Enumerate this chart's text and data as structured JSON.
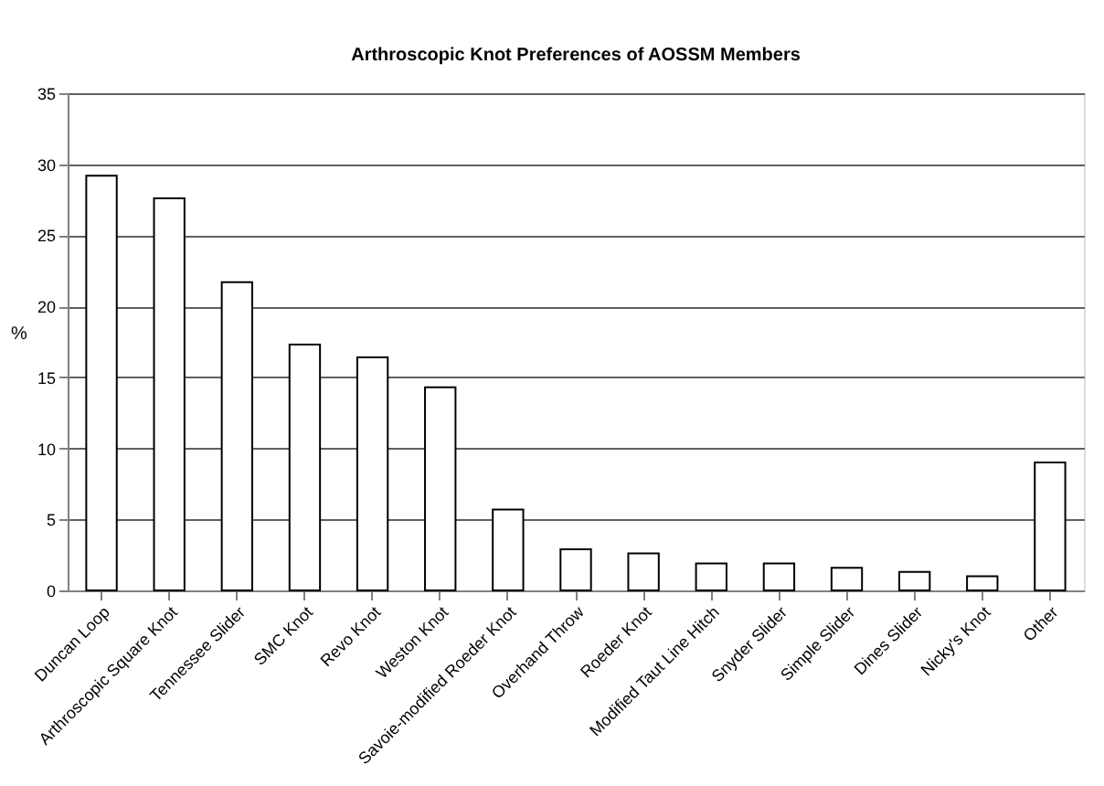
{
  "chart_data": {
    "type": "bar",
    "title": "Arthroscopic Knot Preferences of AOSSM Members",
    "ylabel": "%",
    "categories": [
      "Duncan Loop",
      "Arthroscopic Square Knot",
      "Tennessee Slider",
      "SMC Knot",
      "Revo Knot",
      "Weston Knot",
      "Savoie-modified Roeder Knot",
      "Overhand Throw",
      "Roeder Knot",
      "Modified Taut Line Hitch",
      "Snyder Slider",
      "Simple Slider",
      "Dines Slider",
      "Nicky's Knot",
      "Other"
    ],
    "values": [
      29.2,
      27.6,
      21.7,
      17.3,
      16.4,
      14.3,
      5.7,
      2.9,
      2.6,
      1.9,
      1.9,
      1.6,
      1.3,
      1.0,
      9.0
    ],
    "color": "#ffffff",
    "ylim": [
      0,
      35
    ],
    "yticks": [
      0,
      5,
      10,
      15,
      20,
      25,
      30,
      35
    ],
    "grid": "y"
  }
}
